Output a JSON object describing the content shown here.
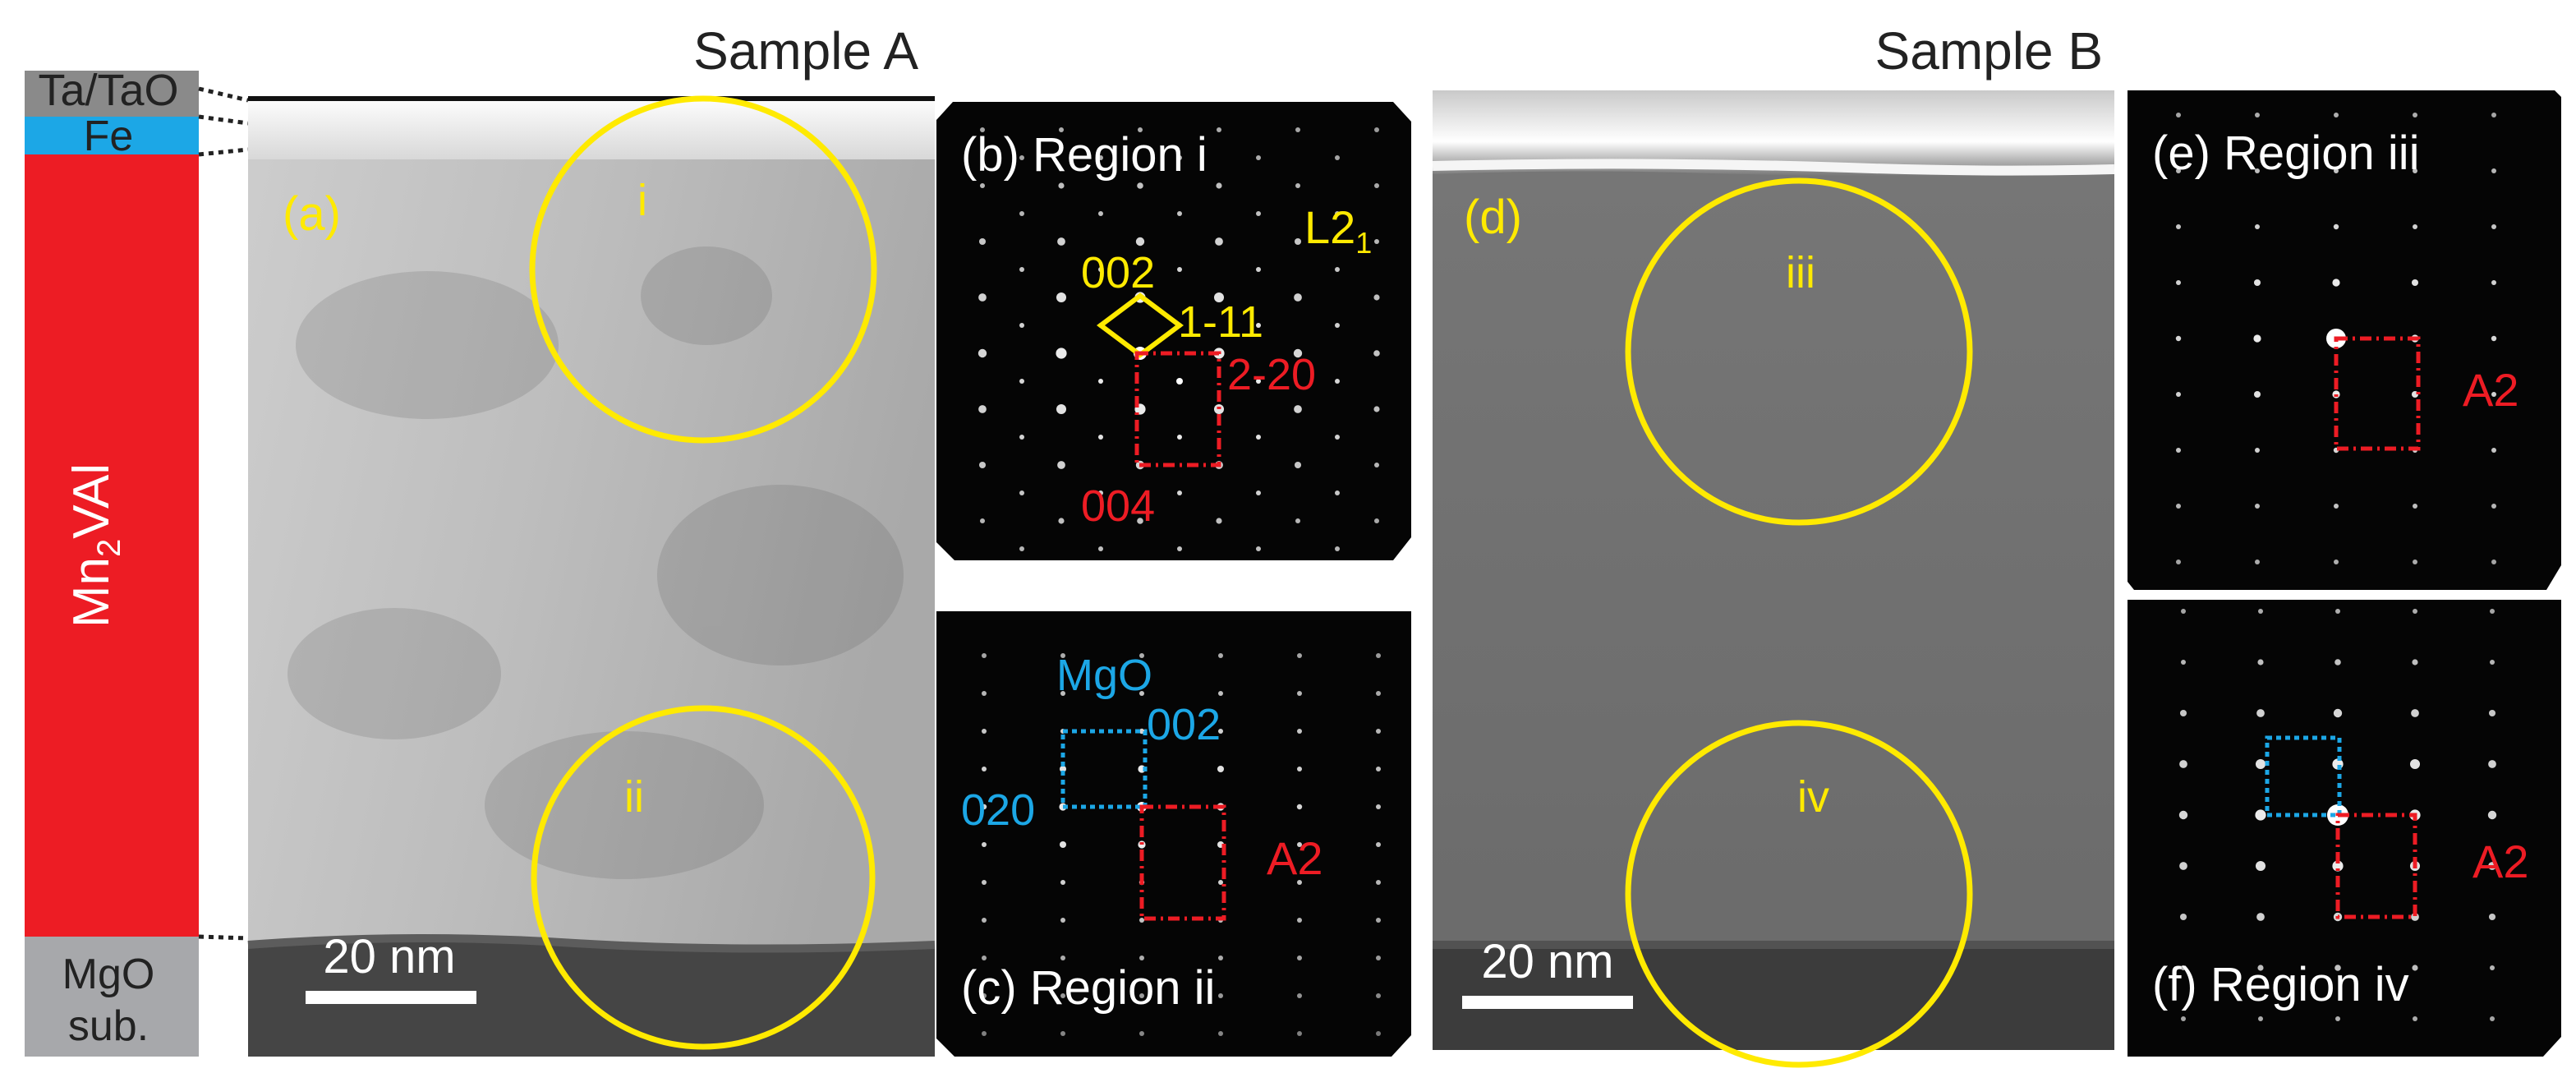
{
  "layers": {
    "ta": "Ta/TaO",
    "fe": "Fe",
    "main_prefix": "Mn",
    "main_sub": "2",
    "main_suffix": "VAl",
    "sub_line1": "MgO",
    "sub_line2": "sub."
  },
  "sample_a": {
    "title": "Sample A",
    "panel_label": "(a)",
    "region_i": "i",
    "region_ii": "ii",
    "scale_bar": "20 nm"
  },
  "panel_b": {
    "label": "(b) Region i",
    "phase_main": "L2",
    "phase_sub": "1",
    "spot_002": "002",
    "spot_1_11": "1-11",
    "spot_2_20": "2-20",
    "spot_004": "004"
  },
  "panel_c": {
    "label": "(c) Region ii",
    "mgo": "MgO",
    "spot_002": "002",
    "spot_020": "020",
    "phase": "A2"
  },
  "sample_b": {
    "title": "Sample B",
    "panel_label": "(d)",
    "region_iii": "iii",
    "region_iv": "iv",
    "scale_bar": "20 nm"
  },
  "panel_e": {
    "label": "(e) Region iii",
    "phase": "A2"
  },
  "panel_f": {
    "label": "(f) Region iv",
    "phase": "A2"
  },
  "colors": {
    "yellow": "#ffea00",
    "red": "#ed1c24",
    "blue": "#1ca7e6",
    "grey": "#a7a8ab"
  }
}
